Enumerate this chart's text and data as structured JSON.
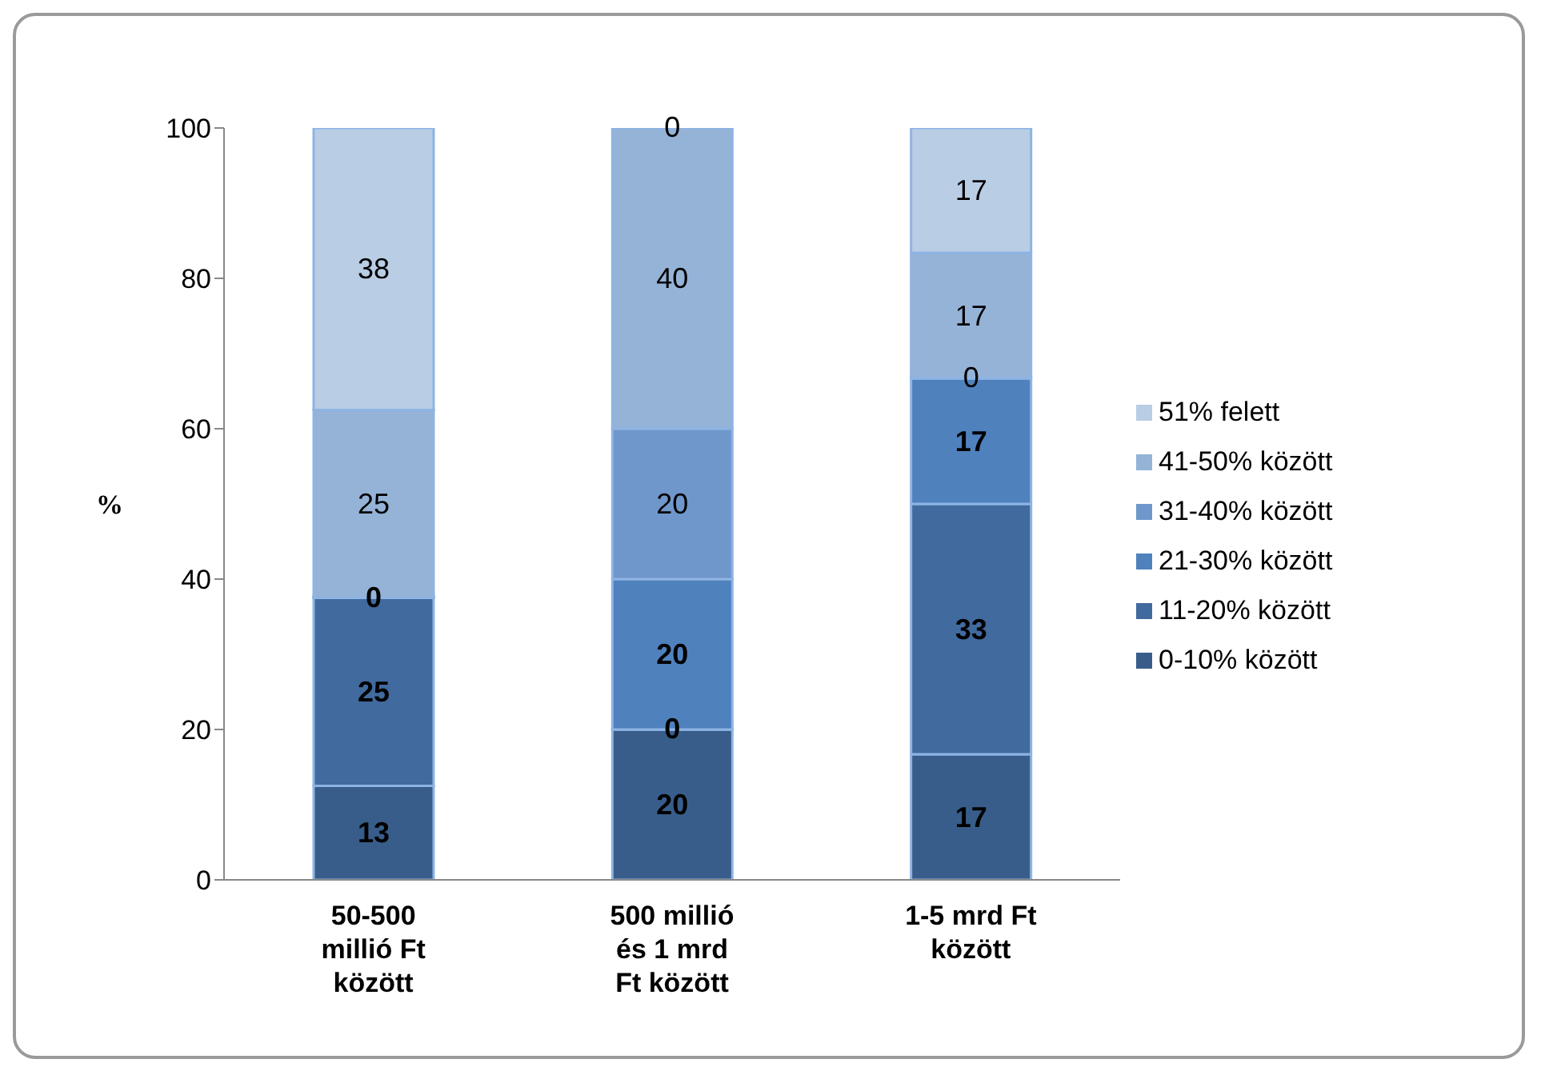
{
  "chart_data": {
    "type": "bar",
    "stacked": true,
    "ylabel": "%",
    "categories": [
      "50-500 millió Ft között",
      "500 millió és 1 mrd Ft között",
      "1-5 mrd Ft között"
    ],
    "series": [
      {
        "name": "0-10% között",
        "color": "#385d8a",
        "values": [
          12.5,
          20,
          16.7
        ],
        "value_labels": [
          "13",
          "20",
          "17"
        ]
      },
      {
        "name": "11-20% között",
        "color": "#416a9e",
        "values": [
          25,
          0,
          33.3
        ],
        "value_labels": [
          "25",
          "0",
          "33"
        ]
      },
      {
        "name": "21-30% között",
        "color": "#4f81bd",
        "values": [
          0,
          20,
          16.7
        ],
        "value_labels": [
          "0",
          "20",
          "17"
        ]
      },
      {
        "name": "31-40% között",
        "color": "#7097cb",
        "values": [
          0,
          20,
          0
        ],
        "value_labels": [
          null,
          "20",
          "0"
        ]
      },
      {
        "name": "41-50% között",
        "color": "#95b3d7",
        "values": [
          25,
          40,
          16.7
        ],
        "value_labels": [
          "25",
          "40",
          "17"
        ]
      },
      {
        "name": "51% felett",
        "color": "#b9cde5",
        "values": [
          37.5,
          0,
          16.6
        ],
        "value_labels": [
          "38",
          "0",
          "17"
        ]
      }
    ],
    "ylim": [
      0,
      100
    ],
    "yticks": [
      0,
      20,
      40,
      60,
      80,
      100
    ],
    "grid": false,
    "legend": "right"
  }
}
